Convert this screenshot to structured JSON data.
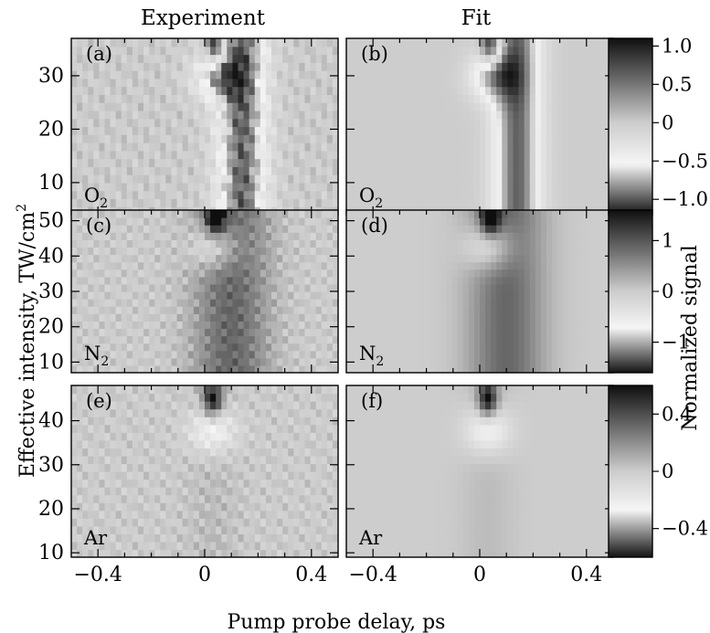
{
  "chart_data": {
    "type": "heatmap",
    "column_titles": [
      "Experiment",
      "Fit"
    ],
    "xlabel": "Pump probe delay, ps",
    "ylabel_parts": {
      "main": "Effective intensity, TW/cm",
      "sup": "2"
    },
    "colorbar_label": "Normalized signal",
    "x_ticks": [
      -0.4,
      0,
      0.4
    ],
    "x_tick_labels": [
      "−0.4",
      "0",
      "0.4"
    ],
    "xlim": [
      -0.5,
      0.5
    ],
    "rows": [
      {
        "gas": {
          "base": "O",
          "sub": "2"
        },
        "panels": [
          {
            "letter": "(a)",
            "kind": "experiment"
          },
          {
            "letter": "(b)",
            "kind": "fit"
          }
        ],
        "ylim": [
          4,
          37
        ],
        "y_ticks": [
          10,
          20,
          30
        ],
        "y_tick_labels": [
          "10",
          "20",
          "30"
        ],
        "signal_range": [
          -1.2,
          1.1
        ],
        "colorbar_ticks": [
          1.0,
          0.5,
          0,
          -0.5,
          -1.0
        ],
        "colorbar_tick_labels": [
          "1.0",
          "0.5",
          "0",
          "−0.5",
          "−1.0"
        ],
        "features": {
          "peak_delay": 0.04,
          "peak_intensity": 36,
          "dark_band_delay": 0.14,
          "dark_band_width": 0.09,
          "dark_band_value": -0.9
        }
      },
      {
        "gas": {
          "base": "N",
          "sub": "2"
        },
        "panels": [
          {
            "letter": "(c)",
            "kind": "experiment"
          },
          {
            "letter": "(d)",
            "kind": "fit"
          }
        ],
        "ylim": [
          7,
          53
        ],
        "y_ticks": [
          10,
          20,
          30,
          40,
          50
        ],
        "y_tick_labels": [
          "10",
          "20",
          "30",
          "40",
          "50"
        ],
        "signal_range": [
          -1.6,
          1.6
        ],
        "colorbar_ticks": [
          1,
          0,
          -1
        ],
        "colorbar_tick_labels": [
          "1",
          "0",
          "−1"
        ],
        "features": {
          "peak_delay": 0.04,
          "peak_intensity": 51,
          "dark_band_delay": 0.1,
          "dark_band_width": 0.14,
          "dark_band_value": 0.6
        }
      },
      {
        "gas": {
          "base": "Ar",
          "sub": ""
        },
        "panels": [
          {
            "letter": "(e)",
            "kind": "experiment"
          },
          {
            "letter": "(f)",
            "kind": "fit"
          }
        ],
        "ylim": [
          9,
          48
        ],
        "y_ticks": [
          10,
          20,
          30,
          40
        ],
        "y_tick_labels": [
          "10",
          "20",
          "30",
          "40"
        ],
        "signal_range": [
          -0.6,
          0.6
        ],
        "colorbar_ticks": [
          0.4,
          0,
          -0.4
        ],
        "colorbar_tick_labels": [
          "0.4",
          "0",
          "−0.4"
        ],
        "features": {
          "peak_delay": 0.03,
          "peak_intensity": 45,
          "dark_band_delay": 0.03,
          "dark_band_width": 0.1,
          "dark_band_value": 0.1
        }
      }
    ]
  }
}
